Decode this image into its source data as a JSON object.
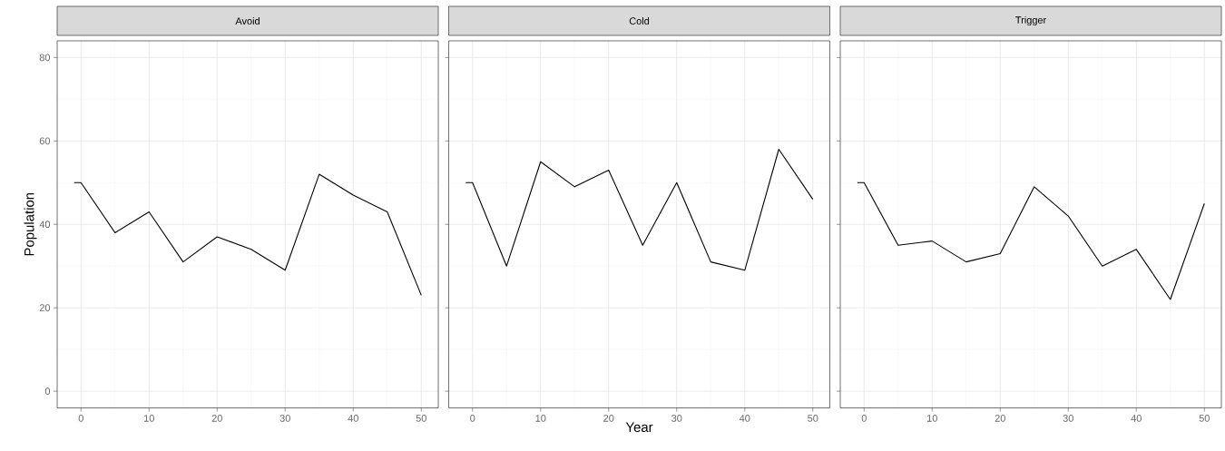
{
  "chart_data": [
    {
      "type": "line",
      "title": "Avoid",
      "ylabel": "Population",
      "x": [
        -1,
        0,
        5,
        10,
        15,
        20,
        25,
        30,
        35,
        40,
        45,
        50
      ],
      "values": [
        50,
        50,
        38,
        43,
        31,
        37,
        34,
        29,
        52,
        47,
        43,
        23
      ],
      "color": "#000000",
      "xlim": [
        -3.5,
        52.5
      ],
      "ylim": [
        -4,
        84
      ],
      "xticks": [
        0,
        10,
        20,
        30,
        40,
        50
      ],
      "yticks": [
        0,
        20,
        40,
        60,
        80
      ],
      "grid": true,
      "marker": "none"
    },
    {
      "type": "line",
      "title": "Cold",
      "xlabel": "Year",
      "x": [
        -1,
        0,
        5,
        10,
        15,
        20,
        25,
        30,
        35,
        40,
        45,
        50
      ],
      "values": [
        50,
        50,
        30,
        55,
        49,
        53,
        35,
        50,
        31,
        29,
        58,
        46
      ],
      "color": "#000000",
      "xlim": [
        -3.5,
        52.5
      ],
      "ylim": [
        -4,
        84
      ],
      "xticks": [
        0,
        10,
        20,
        30,
        40,
        50
      ],
      "yticks": [
        0,
        20,
        40,
        60,
        80
      ],
      "grid": true,
      "marker": "none",
      "tick_labels": "x"
    },
    {
      "type": "line",
      "title": "Trigger",
      "x": [
        -1,
        0,
        5,
        10,
        15,
        20,
        25,
        30,
        35,
        40,
        45,
        50
      ],
      "values": [
        50,
        50,
        35,
        36,
        31,
        33,
        49,
        42,
        30,
        34,
        22,
        45
      ],
      "color": "#000000",
      "xlim": [
        -3.5,
        52.5
      ],
      "ylim": [
        -4,
        84
      ],
      "xticks": [
        0,
        10,
        20,
        30,
        40,
        50
      ],
      "yticks": [
        0,
        20,
        40,
        60,
        80
      ],
      "grid": true,
      "marker": "none",
      "tick_labels": "x"
    }
  ]
}
